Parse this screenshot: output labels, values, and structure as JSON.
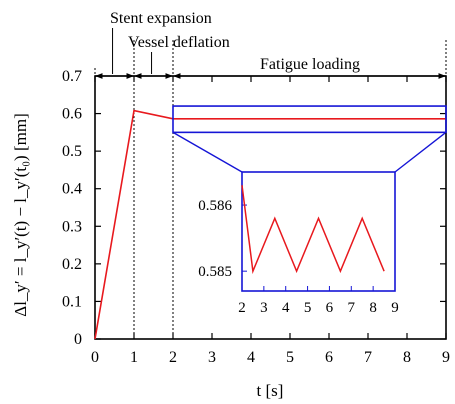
{
  "chart_data": {
    "type": "line",
    "title": "",
    "xlabel": "t [s]",
    "ylabel": "Δl_y′ = l_y′(t) − l_y′(t₀) [mm]",
    "xlim": [
      0,
      9
    ],
    "ylim": [
      0,
      0.7
    ],
    "x_ticks": [
      "0",
      "1",
      "2",
      "3",
      "4",
      "5",
      "6",
      "7",
      "8",
      "9"
    ],
    "y_ticks": [
      "0",
      "0.1",
      "0.2",
      "0.3",
      "0.4",
      "0.5",
      "0.6",
      "0.7"
    ],
    "grid": false,
    "series": [
      {
        "color": "#e8191e",
        "points": [
          [
            0,
            0
          ],
          [
            1,
            0.608
          ],
          [
            2,
            0.586
          ],
          [
            9,
            0.586
          ]
        ]
      }
    ],
    "phases": [
      {
        "label": "Stent expansion",
        "x_start": 0,
        "x_end": 1
      },
      {
        "label": "Vessel deflation",
        "x_start": 1,
        "x_end": 2
      },
      {
        "label": "Fatigue loading",
        "x_start": 2,
        "x_end": 9
      }
    ],
    "zoom_box": {
      "x": [
        2,
        9
      ],
      "y": [
        0.55,
        0.62
      ],
      "color": "#1515d6"
    },
    "inset": {
      "xlim": [
        2,
        9
      ],
      "ylim": [
        0.5847,
        0.5865
      ],
      "x_ticks": [
        "2",
        "3",
        "4",
        "5",
        "6",
        "7",
        "8",
        "9"
      ],
      "y_ticks": [
        "0.586",
        "0.585"
      ],
      "points": [
        [
          2,
          0.5863
        ],
        [
          2.5,
          0.585
        ],
        [
          3.5,
          0.5858
        ],
        [
          4.5,
          0.585
        ],
        [
          5.5,
          0.5858
        ],
        [
          6.5,
          0.585
        ],
        [
          7.5,
          0.5858
        ],
        [
          8.5,
          0.585
        ]
      ]
    }
  }
}
